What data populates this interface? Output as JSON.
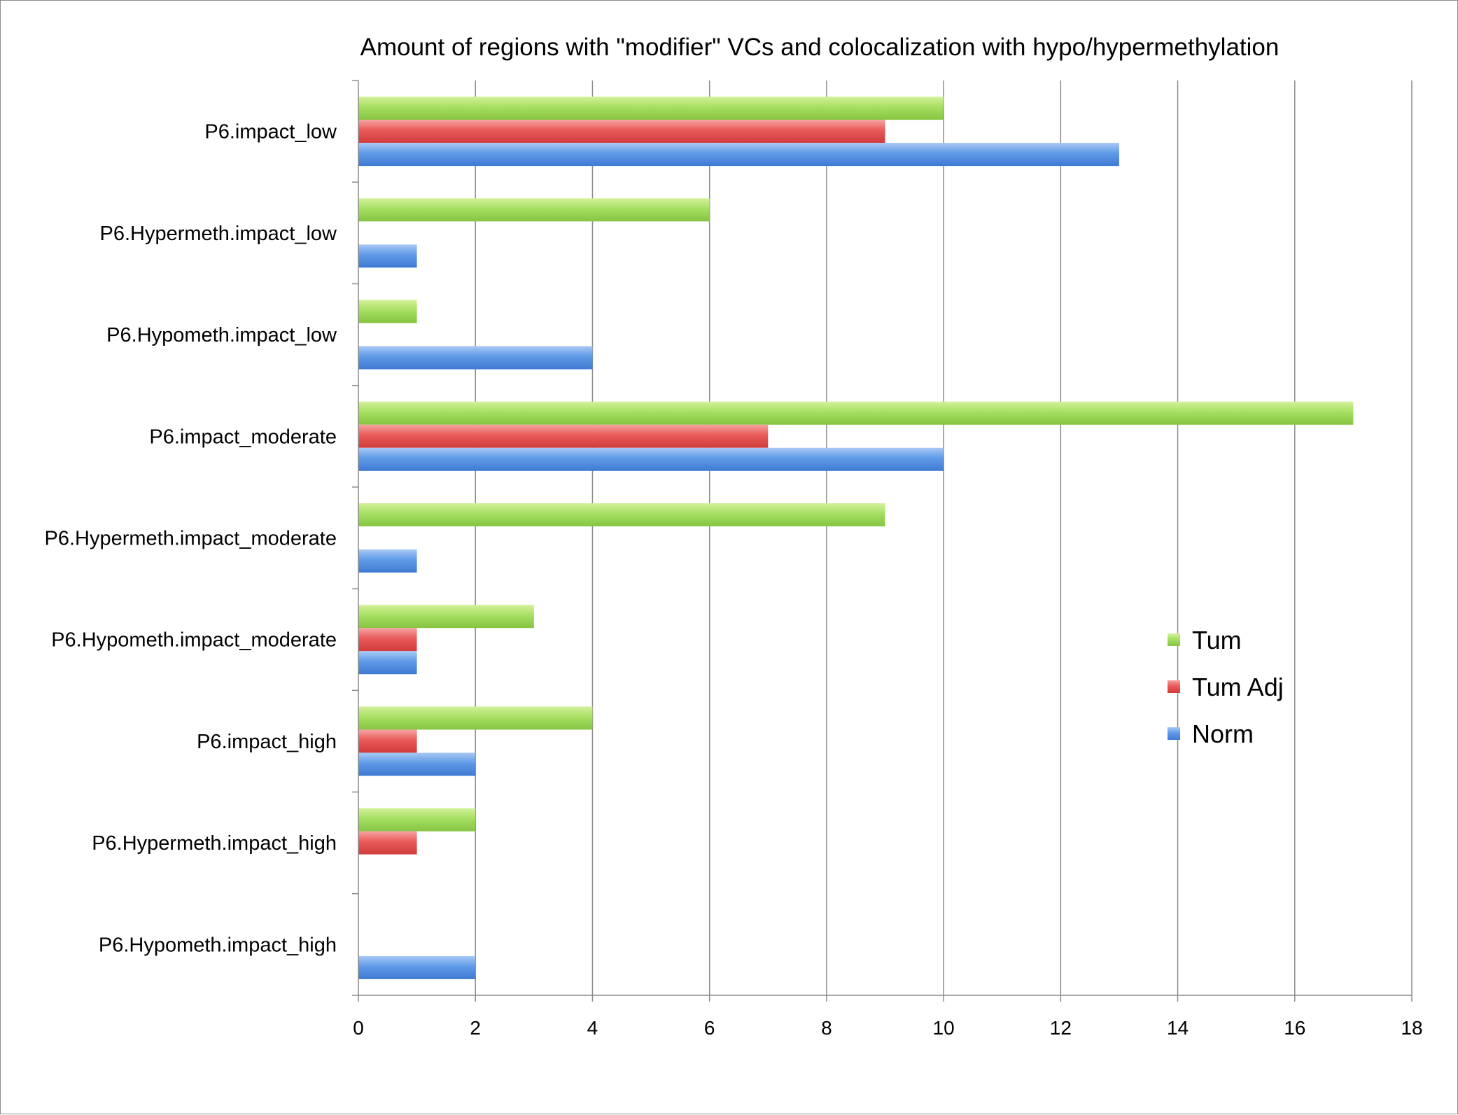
{
  "chart_data": {
    "type": "bar",
    "orientation": "horizontal",
    "title": "Amount of regions with \"modifier\" VCs and colocalization with hypo/hypermethylation",
    "xlabel": "",
    "ylabel": "",
    "xlim": [
      0,
      18
    ],
    "xticks": [
      "0",
      "2",
      "4",
      "6",
      "8",
      "10",
      "12",
      "14",
      "16",
      "18"
    ],
    "grid": "vertical gridlines",
    "legend_position": "right",
    "categories": [
      "P6.impact_low",
      "P6.Hypermeth.impact_low",
      "P6.Hypometh.impact_low",
      "P6.impact_moderate",
      "P6.Hypermeth.impact_moderate",
      "P6.Hypometh.impact_moderate",
      "P6.impact_high",
      "P6.Hypermeth.impact_high",
      "P6.Hypometh.impact_high"
    ],
    "series": [
      {
        "name": "Tum",
        "color": "#92d050",
        "values": [
          10,
          6,
          1,
          17,
          9,
          3,
          4,
          2,
          0
        ]
      },
      {
        "name": "Tum Adj",
        "color": "#e84c4c",
        "values": [
          9,
          0,
          0,
          7,
          0,
          1,
          1,
          1,
          0
        ]
      },
      {
        "name": "Norm",
        "color": "#4f8fe6",
        "values": [
          13,
          1,
          4,
          10,
          1,
          1,
          2,
          0,
          2
        ]
      }
    ]
  }
}
